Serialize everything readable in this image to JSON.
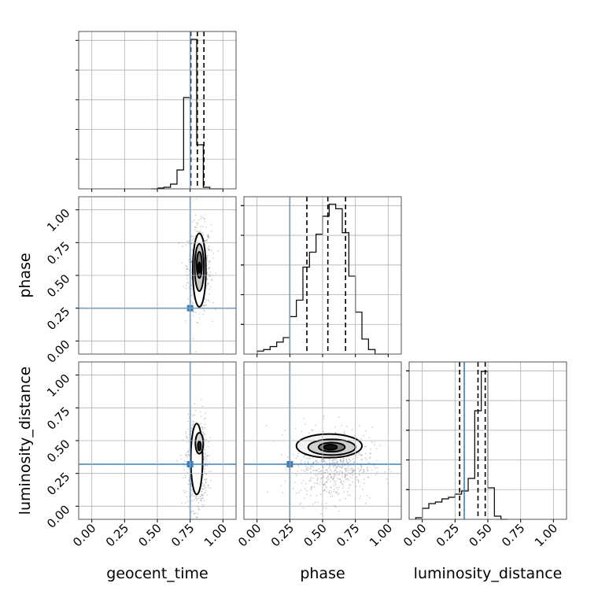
{
  "chart_data": {
    "type": "corner",
    "parameters": [
      "geocent_time",
      "phase",
      "luminosity_distance"
    ],
    "axis_range": [
      -0.1,
      1.1
    ],
    "tick_values": [
      0.0,
      0.25,
      0.5,
      0.75,
      1.0
    ],
    "tick_labels": [
      "0.00",
      "0.25",
      "0.50",
      "0.75",
      "1.00"
    ],
    "grid": true,
    "colors": {
      "truth": "#3f7fb8",
      "histogram": "#000000",
      "quantile": "#000000",
      "sample_points": "#7a7a7a"
    },
    "truths": {
      "geocent_time": 0.75,
      "phase": 0.25,
      "luminosity_distance": 0.32
    },
    "quantiles": {
      "geocent_time": [
        0.755,
        0.805,
        0.855
      ],
      "phase": [
        0.38,
        0.54,
        0.675
      ],
      "luminosity_distance": [
        0.285,
        0.425,
        0.48
      ]
    },
    "histograms": [
      {
        "parameter": "geocent_time",
        "bins": [
          0.45,
          0.5,
          0.55,
          0.6,
          0.65,
          0.7,
          0.75,
          0.8,
          0.85,
          0.9,
          0.95,
          1.0
        ],
        "counts": [
          0,
          0.5,
          1,
          3,
          12,
          58,
          95,
          28,
          1,
          0,
          0
        ],
        "ymax": 100
      },
      {
        "parameter": "phase",
        "bins": [
          0.0,
          0.05,
          0.1,
          0.15,
          0.2,
          0.25,
          0.3,
          0.35,
          0.4,
          0.45,
          0.5,
          0.55,
          0.6,
          0.65,
          0.7,
          0.75,
          0.8,
          0.85,
          0.9,
          0.95,
          1.0
        ],
        "counts": [
          2,
          3,
          5,
          8,
          11,
          25,
          36,
          58,
          68,
          80,
          92,
          100,
          97,
          81,
          52,
          28,
          10,
          3,
          0,
          0
        ],
        "ymax": 105
      },
      {
        "parameter": "luminosity_distance",
        "bins": [
          -0.05,
          0.0,
          0.05,
          0.1,
          0.15,
          0.2,
          0.25,
          0.3,
          0.35,
          0.4,
          0.45,
          0.5,
          0.55,
          0.6,
          0.65
        ],
        "counts": [
          1,
          7,
          10,
          11,
          13,
          14,
          16,
          18,
          26,
          69,
          94,
          20,
          2,
          0
        ],
        "ymax": 100
      }
    ],
    "scatter_panels": [
      {
        "x": "geocent_time",
        "y": "phase",
        "cloud": {
          "cx": 0.82,
          "cy": 0.56,
          "sx": 0.045,
          "sy": 0.16
        },
        "contours": [
          {
            "cx": 0.82,
            "cy": 0.54,
            "rx": 0.05,
            "ry": 0.28,
            "fill": "#ffffff"
          },
          {
            "cx": 0.82,
            "cy": 0.56,
            "rx": 0.035,
            "ry": 0.18,
            "fill": "#c8c8c8"
          },
          {
            "cx": 0.82,
            "cy": 0.58,
            "rx": 0.02,
            "ry": 0.1,
            "fill": "#7a7a7a"
          },
          {
            "cx": 0.82,
            "cy": 0.56,
            "rx": 0.008,
            "ry": 0.04,
            "fill": "#111111"
          }
        ]
      },
      {
        "x": "geocent_time",
        "y": "luminosity_distance",
        "cloud": {
          "cx": 0.8,
          "cy": 0.32,
          "sx": 0.04,
          "sy": 0.17
        },
        "contours": [
          {
            "cx": 0.8,
            "cy": 0.36,
            "rx": 0.045,
            "ry": 0.27,
            "fill": "#ffffff"
          },
          {
            "cx": 0.82,
            "cy": 0.48,
            "rx": 0.03,
            "ry": 0.08,
            "fill": "#d8d8d8"
          },
          {
            "cx": 0.82,
            "cy": 0.46,
            "rx": 0.012,
            "ry": 0.035,
            "fill": "#222222"
          }
        ]
      },
      {
        "x": "phase",
        "y": "luminosity_distance",
        "cloud": {
          "cx": 0.58,
          "cy": 0.32,
          "sx": 0.15,
          "sy": 0.14
        },
        "contours": [
          {
            "cx": 0.55,
            "cy": 0.46,
            "rx": 0.25,
            "ry": 0.09,
            "fill": "#f4f4f4"
          },
          {
            "cx": 0.57,
            "cy": 0.45,
            "rx": 0.18,
            "ry": 0.06,
            "fill": "#d0d0d0"
          },
          {
            "cx": 0.57,
            "cy": 0.45,
            "rx": 0.1,
            "ry": 0.035,
            "fill": "#7c7c7c"
          },
          {
            "cx": 0.56,
            "cy": 0.45,
            "rx": 0.05,
            "ry": 0.02,
            "fill": "#151515"
          }
        ]
      }
    ]
  }
}
